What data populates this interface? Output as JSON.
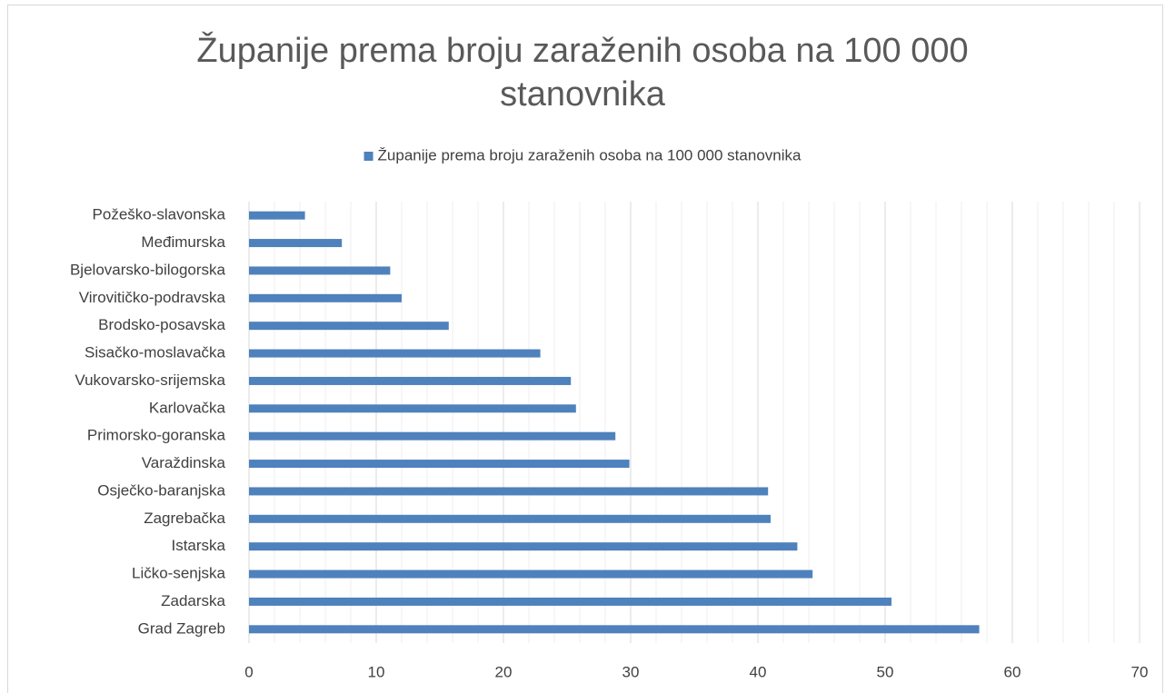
{
  "chart_data": {
    "type": "barh",
    "title": "Županije prema broju zaraženih osoba na 100 000 stanovnika",
    "categories": [
      "Požeško-slavonska",
      "Međimurska",
      "Bjelovarsko-bilogorska",
      "Virovitičko-podravska",
      "Brodsko-posavska",
      "Sisačko-moslavačka",
      "Vukovarsko-srijemska",
      "Karlovačka",
      "Primorsko-goranska",
      "Varaždinska",
      "Osječko-baranjska",
      "Zagrebačka",
      "Istarska",
      "Ličko-senjska",
      "Zadarska",
      "Grad Zagreb"
    ],
    "series": [
      {
        "name": "Županije prema broju zaraženih osoba na 100 000 stanovnika",
        "color": "#4f81bd",
        "values": [
          4.4,
          7.3,
          11.1,
          12,
          15.7,
          22.9,
          25.3,
          25.7,
          28.8,
          29.9,
          40.8,
          41,
          43.1,
          44.3,
          50.5,
          57.4
        ]
      }
    ],
    "xlim": [
      0,
      70
    ],
    "xticks": [
      0,
      10,
      20,
      30,
      40,
      50,
      60,
      70
    ],
    "xminorticks": [
      2,
      4,
      6,
      8,
      12,
      14,
      16,
      18,
      22,
      24,
      26,
      28,
      32,
      34,
      36,
      38,
      42,
      44,
      46,
      48,
      52,
      54,
      56,
      58,
      62,
      64,
      66,
      68
    ],
    "grid": true,
    "legend": "top"
  }
}
